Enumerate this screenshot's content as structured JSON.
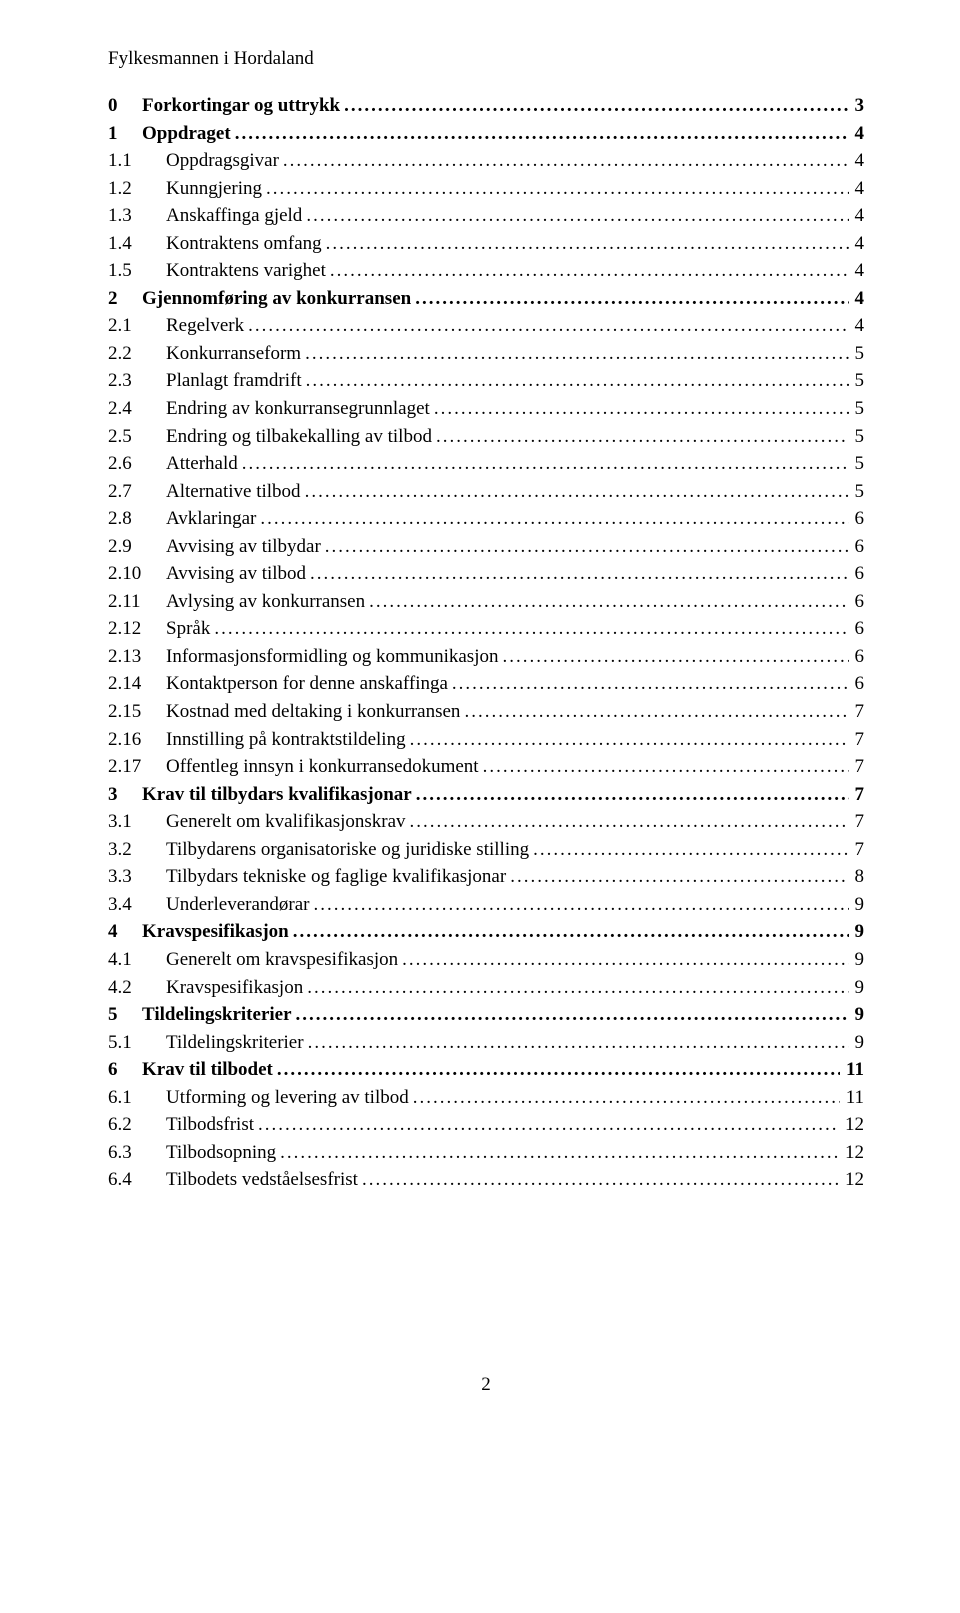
{
  "header": "Fylkesmannen i Hordaland",
  "toc": [
    {
      "level": 0,
      "num": "0",
      "title": "Forkortingar og uttrykk",
      "page": "3",
      "bold": true
    },
    {
      "level": 0,
      "num": "1",
      "title": "Oppdraget",
      "page": "4",
      "bold": true
    },
    {
      "level": 1,
      "num": "1.1",
      "title": "Oppdragsgivar",
      "page": "4"
    },
    {
      "level": 1,
      "num": "1.2",
      "title": "Kunngjering",
      "page": "4"
    },
    {
      "level": 1,
      "num": "1.3",
      "title": "Anskaffinga gjeld",
      "page": "4"
    },
    {
      "level": 1,
      "num": "1.4",
      "title": "Kontraktens omfang",
      "page": "4"
    },
    {
      "level": 1,
      "num": "1.5",
      "title": "Kontraktens varighet",
      "page": "4"
    },
    {
      "level": 0,
      "num": "2",
      "title": "Gjennomføring av konkurransen",
      "page": "4",
      "bold": true
    },
    {
      "level": 1,
      "num": "2.1",
      "title": "Regelverk",
      "page": "4"
    },
    {
      "level": 1,
      "num": "2.2",
      "title": "Konkurranseform",
      "page": "5"
    },
    {
      "level": 1,
      "num": "2.3",
      "title": "Planlagt framdrift",
      "page": "5"
    },
    {
      "level": 1,
      "num": "2.4",
      "title": "Endring av konkurransegrunnlaget",
      "page": "5"
    },
    {
      "level": 1,
      "num": "2.5",
      "title": "Endring og tilbakekalling av tilbod",
      "page": "5"
    },
    {
      "level": 1,
      "num": "2.6",
      "title": "Atterhald",
      "page": "5"
    },
    {
      "level": 1,
      "num": "2.7",
      "title": "Alternative tilbod",
      "page": "5"
    },
    {
      "level": 1,
      "num": "2.8",
      "title": "Avklaringar",
      "page": "6"
    },
    {
      "level": 1,
      "num": "2.9",
      "title": "Avvising av tilbydar",
      "page": "6"
    },
    {
      "level": 1,
      "num": "2.10",
      "title": "Avvising av tilbod",
      "page": "6"
    },
    {
      "level": 1,
      "num": "2.11",
      "title": "Avlysing av konkurransen",
      "page": "6"
    },
    {
      "level": 1,
      "num": "2.12",
      "title": "Språk",
      "page": "6"
    },
    {
      "level": 1,
      "num": "2.13",
      "title": "Informasjonsformidling og kommunikasjon",
      "page": "6"
    },
    {
      "level": 1,
      "num": "2.14",
      "title": "Kontaktperson for denne anskaffinga",
      "page": "6"
    },
    {
      "level": 1,
      "num": "2.15",
      "title": "Kostnad med deltaking i konkurransen",
      "page": "7"
    },
    {
      "level": 1,
      "num": "2.16",
      "title": "Innstilling på kontraktstildeling",
      "page": "7"
    },
    {
      "level": 1,
      "num": "2.17",
      "title": "Offentleg innsyn i konkurransedokument",
      "page": "7"
    },
    {
      "level": 0,
      "num": "3",
      "title": "Krav til tilbydars kvalifikasjonar",
      "page": "7",
      "bold": true
    },
    {
      "level": 1,
      "num": "3.1",
      "title": "Generelt om kvalifikasjonskrav",
      "page": "7"
    },
    {
      "level": 1,
      "num": "3.2",
      "title": "Tilbydarens organisatoriske og juridiske stilling",
      "page": "7"
    },
    {
      "level": 1,
      "num": "3.3",
      "title": "Tilbydars tekniske og faglige kvalifikasjonar",
      "page": "8"
    },
    {
      "level": 1,
      "num": "3.4",
      "title": "Underleverandørar",
      "page": "9"
    },
    {
      "level": 0,
      "num": "4",
      "title": "Kravspesifikasjon",
      "page": "9",
      "bold": true
    },
    {
      "level": 1,
      "num": "4.1",
      "title": "Generelt om kravspesifikasjon",
      "page": "9"
    },
    {
      "level": 1,
      "num": "4.2",
      "title": "Kravspesifikasjon",
      "page": "9"
    },
    {
      "level": 0,
      "num": "5",
      "title": "Tildelingskriterier",
      "page": "9",
      "bold": true
    },
    {
      "level": 1,
      "num": "5.1",
      "title": "Tildelingskriterier",
      "page": "9"
    },
    {
      "level": 0,
      "num": "6",
      "title": "Krav til tilbodet",
      "page": "11",
      "bold": true
    },
    {
      "level": 1,
      "num": "6.1",
      "title": "Utforming og levering av tilbod",
      "page": "11"
    },
    {
      "level": 1,
      "num": "6.2",
      "title": "Tilbodsfrist",
      "page": "12"
    },
    {
      "level": 1,
      "num": "6.3",
      "title": "Tilbodsopning",
      "page": "12"
    },
    {
      "level": 1,
      "num": "6.4",
      "title": "Tilbodets vedståelsesfrist",
      "page": "12"
    }
  ],
  "page_number": "2"
}
